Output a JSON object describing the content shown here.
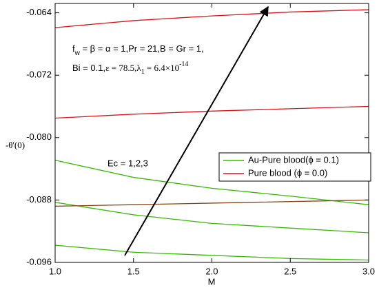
{
  "chart_data": {
    "type": "line",
    "x_label": "M",
    "y_label": "-θ'(0)",
    "x": [
      1.0,
      1.5,
      2.0,
      2.5,
      3.0
    ],
    "xlim": [
      1.0,
      3.0
    ],
    "xticks": [
      {
        "value": 1.0,
        "label": "1.0"
      },
      1.5,
      {
        "value": 2.0,
        "label": "2.0"
      },
      2.5,
      {
        "value": 3.0,
        "label": "3.0"
      }
    ],
    "ylim": [
      -0.096,
      -0.0628
    ],
    "yticks": [
      -0.096,
      -0.088,
      {
        "value": -0.08,
        "label": "-0.080"
      },
      -0.072,
      -0.064
    ],
    "legend": "lower right",
    "series": [
      {
        "name": "Au-Pure blood(ϕ = 0.1)",
        "color": "#33bb00",
        "lines": [
          {
            "color": "#33bb00",
            "values": [
              -0.0829,
              -0.0851,
              -0.0865,
              -0.0875,
              -0.0886
            ]
          },
          {
            "color": "#33bb00",
            "values": [
              -0.0883,
              -0.0899,
              -0.091,
              -0.0916,
              -0.0922
            ]
          },
          {
            "color": "#33bb00",
            "values": [
              -0.0938,
              -0.0947,
              -0.0951,
              -0.0955,
              -0.0957
            ]
          }
        ]
      },
      {
        "name": "Pure blood (ϕ = 0.0)",
        "color": "#dd1111",
        "lines": [
          {
            "color": "#dd1111",
            "values": [
              -0.0659,
              -0.065,
              -0.0644,
              -0.0639,
              -0.0636
            ]
          },
          {
            "color": "#dd1111",
            "values": [
              -0.0775,
              -0.077,
              -0.0766,
              -0.0763,
              -0.076
            ]
          },
          {
            "color": "#8b4513",
            "values": [
              -0.0888,
              -0.0886,
              -0.0884,
              -0.0882,
              -0.088
            ]
          }
        ]
      }
    ],
    "annotations": {
      "params1": [
        "f",
        "w",
        " = β = α = 1,Pr = 21,B = Gr = 1,"
      ],
      "params2": [
        "Bi = 0.1,",
        "ε = 78.5,λ",
        "1",
        " = 6.4×10",
        "-14"
      ],
      "ec": "Ec = 1,2,3"
    }
  }
}
